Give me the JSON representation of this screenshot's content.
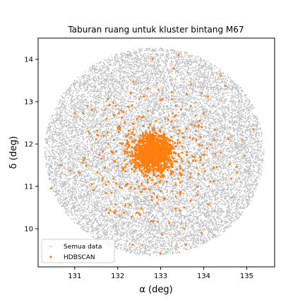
{
  "chart_data": {
    "type": "scatter",
    "title": "Taburan ruang untuk kluster bintang M67",
    "xlabel": "α (deg)",
    "ylabel": "δ (deg)",
    "xlim": [
      130.15,
      135.65
    ],
    "ylim": [
      9.1,
      14.5
    ],
    "xticks": [
      131,
      132,
      133,
      134,
      135
    ],
    "yticks": [
      10,
      11,
      12,
      13,
      14
    ],
    "grid": false,
    "legend_position": "lower-left",
    "series": [
      {
        "name": "Semua data",
        "color": "#c0c0c0",
        "distribution": "uniform-disc",
        "center": [
          132.85,
          11.82
        ],
        "radius_x": 2.55,
        "radius_y": 2.45
      },
      {
        "name": "HDBSCAN",
        "color": "#ff7f0e",
        "distribution": "concentrated-core-with-halo",
        "center": [
          132.82,
          11.78
        ],
        "core_sigma": 0.22,
        "halo_sigma": 0.75,
        "sample_points": [
          [
            133.3,
            13.78
          ],
          [
            134.4,
            13.62
          ],
          [
            134.5,
            13.38
          ],
          [
            131.3,
            12.9
          ],
          [
            131.2,
            12.72
          ],
          [
            131.0,
            12.73
          ],
          [
            130.45,
            10.95
          ],
          [
            130.68,
            11.5
          ],
          [
            130.9,
            11.38
          ],
          [
            131.2,
            11.62
          ],
          [
            131.4,
            11.05
          ],
          [
            131.5,
            12.12
          ],
          [
            131.65,
            11.2
          ],
          [
            131.95,
            10.58
          ],
          [
            132.15,
            10.38
          ],
          [
            132.55,
            10.48
          ],
          [
            132.32,
            10.28
          ],
          [
            132.52,
            10.32
          ],
          [
            132.78,
            10.18
          ],
          [
            133.0,
            9.42
          ],
          [
            132.35,
            9.62
          ],
          [
            133.55,
            10.0
          ],
          [
            133.58,
            9.62
          ],
          [
            133.95,
            9.9
          ],
          [
            134.1,
            10.58
          ],
          [
            134.3,
            11.45
          ],
          [
            134.78,
            11.32
          ],
          [
            134.6,
            11.52
          ],
          [
            134.58,
            12.12
          ],
          [
            134.95,
            11.72
          ],
          [
            135.15,
            12.35
          ],
          [
            134.0,
            12.72
          ],
          [
            133.95,
            13.2
          ],
          [
            132.7,
            13.32
          ],
          [
            132.95,
            13.28
          ],
          [
            133.25,
            13.22
          ],
          [
            133.6,
            13.18
          ],
          [
            132.25,
            12.88
          ],
          [
            132.5,
            12.65
          ],
          [
            131.95,
            12.9
          ],
          [
            132.1,
            12.62
          ],
          [
            131.78,
            12.0
          ],
          [
            131.68,
            12.2
          ],
          [
            132.0,
            11.48
          ],
          [
            131.62,
            11.65
          ],
          [
            133.95,
            12.4
          ],
          [
            133.9,
            11.98
          ],
          [
            134.25,
            12.1
          ],
          [
            133.98,
            11.5
          ],
          [
            133.7,
            11.3
          ],
          [
            133.35,
            11.05
          ],
          [
            133.1,
            10.72
          ],
          [
            132.65,
            10.95
          ],
          [
            132.2,
            11.05
          ],
          [
            133.45,
            10.85
          ],
          [
            134.4,
            11.8
          ],
          [
            131.58,
            11.75
          ],
          [
            132.3,
            13.2
          ],
          [
            134.1,
            13.12
          ],
          [
            132.05,
            12.35
          ]
        ]
      }
    ]
  }
}
